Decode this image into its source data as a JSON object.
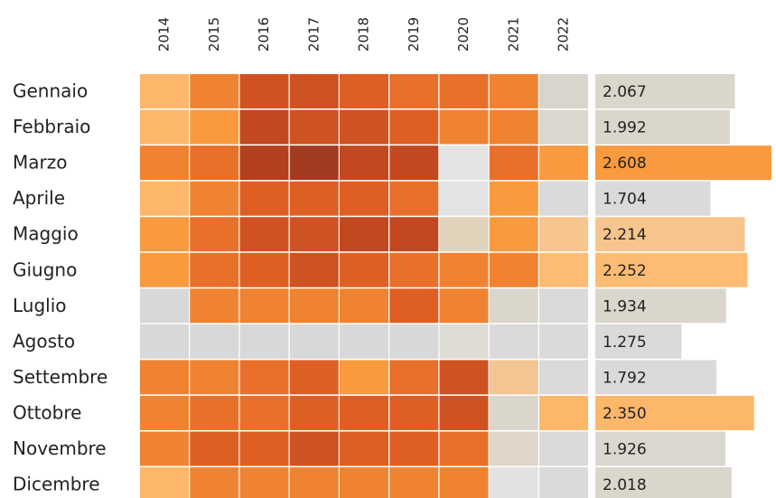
{
  "chart_data": [
    {
      "type": "heatmap",
      "x": [
        "2014",
        "2015",
        "2016",
        "2017",
        "2018",
        "2019",
        "2020",
        "2021",
        "2022"
      ],
      "categories": [
        "Gennaio",
        "Febbraio",
        "Marzo",
        "Aprile",
        "Maggio",
        "Giugno",
        "Luglio",
        "Agosto",
        "Settembre",
        "Ottobre",
        "Novembre",
        "Dicembre"
      ],
      "colors": [
        [
          "#fdb76a",
          "#f08331",
          "#cf5222",
          "#cf5222",
          "#de5f24",
          "#e8702a",
          "#e8702a",
          "#f08331",
          "#d9d5cc"
        ],
        [
          "#fdb76a",
          "#f99a3e",
          "#c2481f",
          "#cf5222",
          "#cf5222",
          "#de5f24",
          "#f08331",
          "#f08331",
          "#dad7ce"
        ],
        [
          "#f08331",
          "#e8702a",
          "#b3401f",
          "#a23b21",
          "#c2481f",
          "#c2481f",
          "#e3e3e3",
          "#e8702a",
          "#f99a3e"
        ],
        [
          "#fdb76a",
          "#f08331",
          "#de5f24",
          "#de5f24",
          "#de5f24",
          "#e8702a",
          "#e3e3e3",
          "#f99a3e",
          "#dadada"
        ],
        [
          "#f99a3e",
          "#e8702a",
          "#cf5222",
          "#cf5222",
          "#c2481f",
          "#c2481f",
          "#e0d2bb",
          "#f99a3e",
          "#f5c58d"
        ],
        [
          "#f99a3e",
          "#e8702a",
          "#de5f24",
          "#cf5222",
          "#de5f24",
          "#e8702a",
          "#f08331",
          "#f08331",
          "#fdbb73"
        ],
        [
          "#d8d8d8",
          "#f08331",
          "#f08331",
          "#f08331",
          "#f08331",
          "#de5f24",
          "#f08331",
          "#dbd6cc",
          "#dadada"
        ],
        [
          "#d8d8d8",
          "#d8d8d8",
          "#d8d8d8",
          "#d8d8d8",
          "#d8d8d8",
          "#d8d8d8",
          "#dedbd4",
          "#dadada",
          "#dadada"
        ],
        [
          "#f08331",
          "#f08331",
          "#e8702a",
          "#de5f24",
          "#f99a3e",
          "#e8702a",
          "#cf5222",
          "#f3c593",
          "#dadada"
        ],
        [
          "#f08331",
          "#e8702a",
          "#e8702a",
          "#de5f24",
          "#de5f24",
          "#de5f24",
          "#cf5222",
          "#dbd6cc",
          "#fdb76a"
        ],
        [
          "#f08331",
          "#de5f24",
          "#de5f24",
          "#cf5222",
          "#de5f24",
          "#de5f24",
          "#e8702a",
          "#dfd5c8",
          "#dadada"
        ],
        [
          "#fdb76a",
          "#f08331",
          "#f08331",
          "#f08331",
          "#f08331",
          "#f08331",
          "#f08331",
          "#e2e2e2",
          "#dadada"
        ]
      ]
    },
    {
      "type": "bar",
      "values": [
        2067,
        1992,
        2608,
        1704,
        2214,
        2252,
        1934,
        1275,
        1792,
        2350,
        1926,
        2018
      ],
      "value_labels": [
        "2.067",
        "1.992",
        "2.608",
        "1.704",
        "2.214",
        "2.252",
        "1.934",
        "1.275",
        "1.792",
        "2.350",
        "1.926",
        "2.018"
      ],
      "colors": [
        "#dad6cc",
        "#dad6cc",
        "#f99a3e",
        "#dadada",
        "#f5c58d",
        "#fdbb73",
        "#dad6cc",
        "#dadada",
        "#dadada",
        "#fdb76a",
        "#dad7d0",
        "#dad6cc"
      ],
      "xlim": [
        0,
        2608
      ]
    }
  ]
}
